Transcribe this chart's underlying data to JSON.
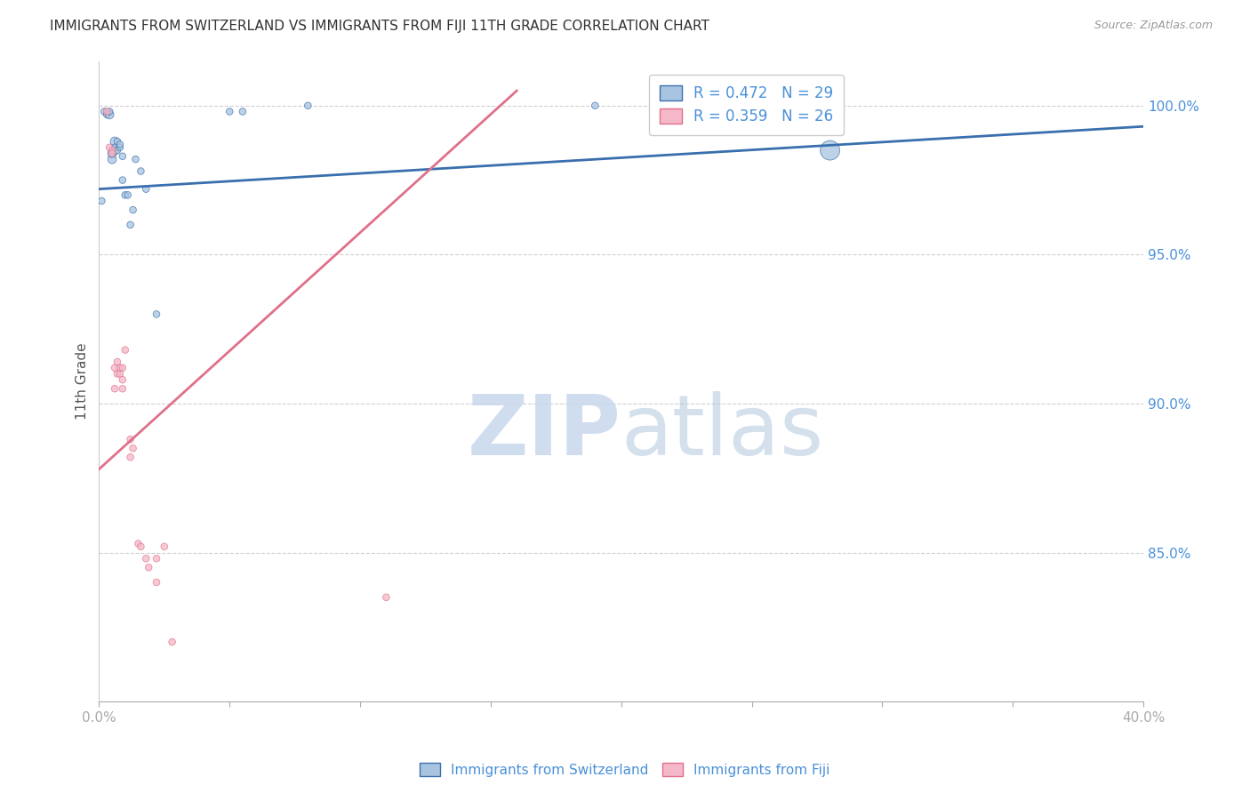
{
  "title": "IMMIGRANTS FROM SWITZERLAND VS IMMIGRANTS FROM FIJI 11TH GRADE CORRELATION CHART",
  "source": "Source: ZipAtlas.com",
  "ylabel": "11th Grade",
  "yaxis_values": [
    1.0,
    0.95,
    0.9,
    0.85
  ],
  "legend_blue_R": "0.472",
  "legend_blue_N": "29",
  "legend_pink_R": "0.359",
  "legend_pink_N": "26",
  "watermark_zip": "ZIP",
  "watermark_atlas": "atlas",
  "blue_color": "#a8c4e0",
  "blue_line_color": "#3a6fad",
  "pink_color": "#f4b8c8",
  "pink_line_color": "#e0708a",
  "blue_scatter_x": [
    0.001,
    0.002,
    0.003,
    0.004,
    0.004,
    0.005,
    0.005,
    0.006,
    0.006,
    0.006,
    0.007,
    0.007,
    0.008,
    0.008,
    0.009,
    0.009,
    0.01,
    0.011,
    0.012,
    0.013,
    0.014,
    0.016,
    0.018,
    0.022,
    0.05,
    0.055,
    0.08,
    0.19,
    0.28
  ],
  "blue_scatter_y": [
    0.968,
    0.998,
    0.997,
    0.997,
    0.998,
    0.982,
    0.984,
    0.985,
    0.988,
    0.986,
    0.988,
    0.985,
    0.986,
    0.987,
    0.983,
    0.975,
    0.97,
    0.97,
    0.96,
    0.965,
    0.982,
    0.978,
    0.972,
    0.93,
    0.998,
    0.998,
    1.0,
    1.0,
    0.985
  ],
  "blue_scatter_sizes": [
    30,
    30,
    30,
    50,
    30,
    50,
    50,
    50,
    50,
    30,
    30,
    30,
    30,
    30,
    30,
    30,
    30,
    30,
    30,
    30,
    30,
    30,
    30,
    30,
    30,
    30,
    30,
    30,
    250
  ],
  "pink_scatter_x": [
    0.003,
    0.004,
    0.005,
    0.005,
    0.006,
    0.006,
    0.007,
    0.007,
    0.008,
    0.008,
    0.009,
    0.009,
    0.009,
    0.01,
    0.012,
    0.012,
    0.013,
    0.015,
    0.016,
    0.018,
    0.019,
    0.022,
    0.022,
    0.025,
    0.028,
    0.11
  ],
  "pink_scatter_y": [
    0.998,
    0.986,
    0.985,
    0.984,
    0.905,
    0.912,
    0.914,
    0.91,
    0.91,
    0.912,
    0.905,
    0.908,
    0.912,
    0.918,
    0.882,
    0.888,
    0.885,
    0.853,
    0.852,
    0.848,
    0.845,
    0.84,
    0.848,
    0.852,
    0.82,
    0.835
  ],
  "pink_scatter_sizes": [
    30,
    30,
    30,
    30,
    30,
    30,
    30,
    30,
    30,
    30,
    30,
    30,
    30,
    30,
    30,
    30,
    30,
    30,
    30,
    30,
    30,
    30,
    30,
    30,
    30,
    30
  ],
  "xlim": [
    0.0,
    0.4
  ],
  "ylim": [
    0.8,
    1.015
  ],
  "blue_trendline_x": [
    0.0,
    0.4
  ],
  "blue_trendline_y": [
    0.972,
    0.993
  ],
  "pink_trendline_x": [
    0.0,
    0.16
  ],
  "pink_trendline_y": [
    0.878,
    1.005
  ],
  "background_color": "#ffffff",
  "grid_color": "#d0d0d0"
}
